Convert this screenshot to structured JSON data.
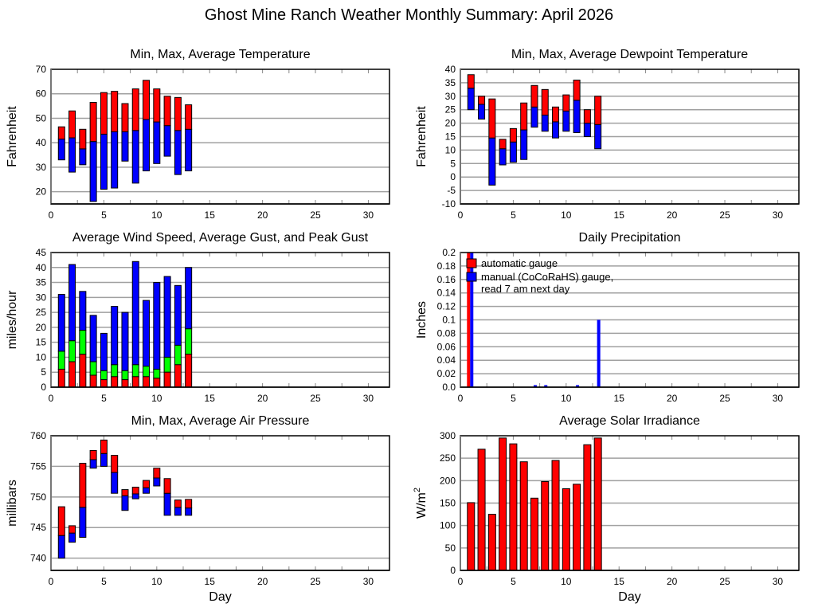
{
  "page_title": "Ghost Mine Ranch Weather Monthly Summary: April 2026",
  "colors": {
    "red": "#ff0000",
    "blue": "#0000ff",
    "green": "#00ff00",
    "grid": "#a0a0a0",
    "frame": "#000000"
  },
  "chart_data": [
    {
      "id": "temperature",
      "type": "bar",
      "title": "Min, Max, Average Temperature",
      "ylabel": "Fahrenheit",
      "xlabel": "",
      "xlim": [
        0,
        32
      ],
      "ylim": [
        15,
        70
      ],
      "xticks": [
        "0",
        "5",
        "10",
        "15",
        "20",
        "25",
        "30"
      ],
      "yticks": [
        "20",
        "30",
        "40",
        "50",
        "60",
        "70"
      ],
      "grid": true,
      "x": [
        1,
        2,
        3,
        4,
        5,
        6,
        7,
        8,
        9,
        10,
        11,
        12,
        13
      ],
      "series": [
        {
          "name": "Min",
          "values": [
            33,
            28,
            31,
            16,
            21,
            21.5,
            32.5,
            23.5,
            28.5,
            31.5,
            34.5,
            27,
            28.5
          ]
        },
        {
          "name": "Average",
          "values": [
            41.5,
            42,
            37.5,
            40.5,
            43.5,
            44.5,
            44.5,
            45,
            49.5,
            48.5,
            47,
            45,
            45.5
          ]
        },
        {
          "name": "Max",
          "values": [
            46.5,
            53,
            45.5,
            56.5,
            60.5,
            61,
            56,
            62,
            65.5,
            62,
            59,
            58.5,
            55.5
          ]
        }
      ]
    },
    {
      "id": "dewpoint",
      "type": "bar",
      "title": "Min, Max, Average Dewpoint Temperature",
      "ylabel": "Fahrenheit",
      "xlabel": "",
      "xlim": [
        0,
        32
      ],
      "ylim": [
        -10,
        40
      ],
      "xticks": [
        "0",
        "5",
        "10",
        "15",
        "20",
        "25",
        "30"
      ],
      "yticks": [
        "-10",
        "-5",
        "0",
        "5",
        "10",
        "15",
        "20",
        "25",
        "30",
        "35",
        "40"
      ],
      "grid": true,
      "x": [
        1,
        2,
        3,
        4,
        5,
        6,
        7,
        8,
        9,
        10,
        11,
        12,
        13
      ],
      "series": [
        {
          "name": "Min",
          "values": [
            25,
            21.5,
            -3,
            4.5,
            5.5,
            6.5,
            18.5,
            17,
            14.5,
            17,
            16.5,
            15,
            10.5
          ]
        },
        {
          "name": "Average",
          "values": [
            33,
            27,
            14.5,
            10.5,
            13,
            17.5,
            26,
            23,
            20.5,
            24.5,
            28.5,
            20,
            19.5
          ]
        },
        {
          "name": "Max",
          "values": [
            38,
            30,
            29,
            14,
            18,
            27.5,
            34,
            32.5,
            26,
            30.5,
            36,
            25,
            30
          ]
        }
      ]
    },
    {
      "id": "wind",
      "type": "bar",
      "title": "Average Wind Speed, Average Gust, and Peak Gust",
      "ylabel": "miles/hour",
      "xlabel": "",
      "xlim": [
        0,
        32
      ],
      "ylim": [
        0,
        45
      ],
      "xticks": [
        "0",
        "5",
        "10",
        "15",
        "20",
        "25",
        "30"
      ],
      "yticks": [
        "0",
        "5",
        "10",
        "15",
        "20",
        "25",
        "30",
        "35",
        "40",
        "45"
      ],
      "grid": true,
      "x": [
        1,
        2,
        3,
        4,
        5,
        6,
        7,
        8,
        9,
        10,
        11,
        12,
        13
      ],
      "series": [
        {
          "name": "Average Wind Speed",
          "values": [
            6,
            8.5,
            11,
            4,
            2.5,
            3.5,
            2.5,
            3.5,
            3.5,
            3,
            5,
            7.5,
            11
          ]
        },
        {
          "name": "Average Gust",
          "values": [
            12,
            15.5,
            19,
            8.5,
            5.5,
            7.5,
            5.5,
            7.5,
            7,
            6,
            10,
            14,
            19.5
          ]
        },
        {
          "name": "Peak Gust",
          "values": [
            31,
            41,
            32,
            24,
            18,
            27,
            25,
            42,
            29,
            35,
            37,
            34,
            40
          ]
        }
      ]
    },
    {
      "id": "precipitation",
      "type": "bar",
      "title": "Daily Precipitation",
      "ylabel": "Inches",
      "xlabel": "",
      "xlim": [
        0,
        32
      ],
      "ylim": [
        0,
        0.2
      ],
      "xticks": [
        "0",
        "5",
        "10",
        "15",
        "20",
        "25",
        "30"
      ],
      "yticks": [
        "0.0",
        "0.02",
        "0.04",
        "0.06",
        "0.08",
        "0.1",
        "0.12",
        "0.14",
        "0.16",
        "0.18",
        "0.2"
      ],
      "grid": true,
      "legend_position": "top-left",
      "legend": [
        "automatic gauge",
        "manual (CoCoRaHS) gauge,",
        "read 7 am next day"
      ],
      "series": [
        {
          "name": "automatic gauge",
          "x": [
            1
          ],
          "values": [
            0.2
          ]
        },
        {
          "name": "manual (CoCoRaHS) gauge, read 7 am next day",
          "x": [
            1,
            7,
            8,
            11,
            13
          ],
          "values": [
            0.2,
            0.003,
            0.003,
            0.003,
            0.1
          ]
        }
      ]
    },
    {
      "id": "pressure",
      "type": "bar",
      "title": "Min, Max, Average Air Pressure",
      "ylabel": "millibars",
      "xlabel": "Day",
      "xlim": [
        0,
        32
      ],
      "ylim": [
        738,
        760
      ],
      "xticks": [
        "0",
        "5",
        "10",
        "15",
        "20",
        "25",
        "30"
      ],
      "yticks": [
        "740",
        "745",
        "750",
        "755",
        "760"
      ],
      "grid": true,
      "x": [
        1,
        2,
        3,
        4,
        5,
        6,
        7,
        8,
        9,
        10,
        11,
        12,
        13
      ],
      "series": [
        {
          "name": "Min",
          "values": [
            740,
            742.6,
            743.4,
            754.7,
            755,
            750.6,
            747.8,
            749.7,
            750.6,
            751.8,
            747,
            747,
            747
          ]
        },
        {
          "name": "Average",
          "values": [
            743.7,
            744.1,
            748.3,
            756.1,
            757.1,
            754,
            750.2,
            750.5,
            751.5,
            753.1,
            750.6,
            748.3,
            748.2
          ]
        },
        {
          "name": "Max",
          "values": [
            748.4,
            745.3,
            755.5,
            757.6,
            759.3,
            756.8,
            751.2,
            751.6,
            752.7,
            754.7,
            753,
            749.5,
            749.6
          ]
        }
      ]
    },
    {
      "id": "solar",
      "type": "bar",
      "title": "Average Solar Irradiance",
      "ylabel": "W/m",
      "ylabel_superscript": "2",
      "xlabel": "Day",
      "xlim": [
        0,
        32
      ],
      "ylim": [
        0,
        300
      ],
      "xticks": [
        "0",
        "5",
        "10",
        "15",
        "20",
        "25",
        "30"
      ],
      "yticks": [
        "0",
        "50",
        "100",
        "150",
        "200",
        "250",
        "300"
      ],
      "grid": true,
      "x": [
        1,
        2,
        3,
        4,
        5,
        6,
        7,
        8,
        9,
        10,
        11,
        12,
        13
      ],
      "series": [
        {
          "name": "Average Solar Irradiance",
          "values": [
            151,
            270,
            125,
            295,
            282,
            242,
            161,
            198,
            245,
            182,
            192,
            280,
            295
          ]
        }
      ]
    }
  ]
}
